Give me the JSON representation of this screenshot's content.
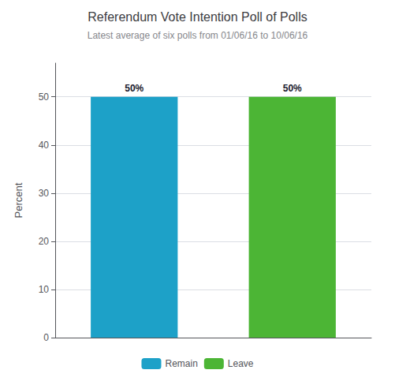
{
  "chart_data": {
    "type": "bar",
    "title": "Referendum Vote Intention Poll of Polls",
    "subtitle": "Latest average of six polls from 01/06/16 to 10/06/16",
    "categories": [
      "Remain",
      "Leave"
    ],
    "values": [
      50,
      50
    ],
    "value_labels": [
      "50%",
      "50%"
    ],
    "colors": [
      "#1da1c8",
      "#4cb535"
    ],
    "ylabel": "Percent",
    "ylim": [
      0,
      57
    ],
    "yticks": [
      0,
      10,
      20,
      30,
      40,
      50
    ],
    "grid": true,
    "legend": "bottom",
    "data_labels": true,
    "tick_labels": "y"
  }
}
